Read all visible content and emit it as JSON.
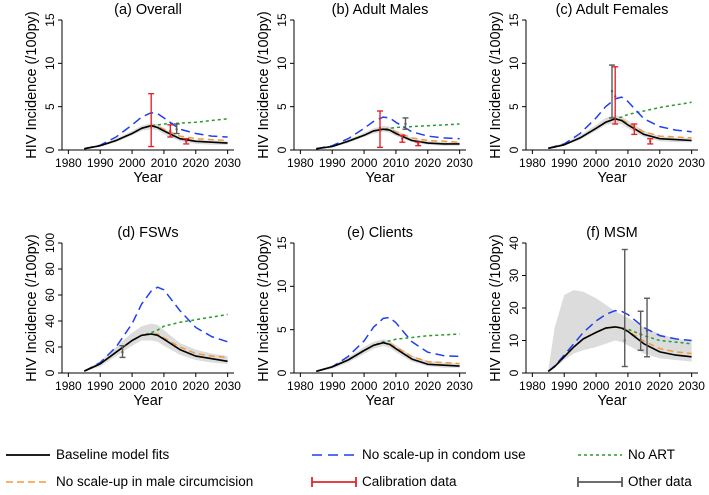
{
  "chart_data": [
    {
      "type": "line",
      "title": "(a) Overall",
      "xlabel": "Year",
      "ylabel": "HIV Incidence (/100py)",
      "xlim": [
        1978,
        2032
      ],
      "ylim": [
        0,
        15
      ],
      "xticks": [
        1980,
        1990,
        2000,
        2010,
        2020,
        2030
      ],
      "yticks": [
        0,
        5,
        10,
        15
      ],
      "x": [
        1985,
        1990,
        1995,
        2000,
        2003,
        2006,
        2008,
        2010,
        2015,
        2020,
        2025,
        2030
      ],
      "band": {
        "lower": [
          0.1,
          0.4,
          0.9,
          1.7,
          2.2,
          2.4,
          2.3,
          1.8,
          1.0,
          0.7,
          0.6,
          0.6
        ],
        "upper": [
          0.2,
          0.6,
          1.3,
          2.2,
          2.8,
          3.1,
          3.0,
          2.5,
          1.5,
          1.2,
          1.1,
          1.0
        ]
      },
      "series": [
        {
          "name": "Baseline model fits",
          "values": [
            0.15,
            0.5,
            1.1,
            1.9,
            2.5,
            2.8,
            2.6,
            2.2,
            1.3,
            1.0,
            0.9,
            0.8
          ]
        },
        {
          "name": "No scale-up in condom use",
          "values": [
            0.15,
            0.55,
            1.5,
            2.9,
            3.8,
            4.3,
            4.2,
            3.7,
            2.4,
            1.9,
            1.6,
            1.5
          ]
        },
        {
          "name": "No ART",
          "values": [
            0.15,
            0.5,
            1.1,
            1.9,
            2.5,
            2.8,
            2.9,
            3.0,
            3.1,
            3.2,
            3.4,
            3.6
          ]
        },
        {
          "name": "No scale-up in male circumcision",
          "values": [
            0.15,
            0.5,
            1.1,
            1.9,
            2.5,
            2.8,
            2.7,
            2.4,
            1.6,
            1.3,
            1.2,
            1.1
          ]
        }
      ],
      "calibration": [
        {
          "x": 2006,
          "y": 2.7,
          "lo": 0.4,
          "hi": 6.5
        },
        {
          "x": 2012,
          "y": 2.2,
          "lo": 1.5,
          "hi": 2.9
        },
        {
          "x": 2017,
          "y": 1.0,
          "lo": 0.7,
          "hi": 1.3
        }
      ],
      "other": [
        {
          "x": 2014,
          "y": 2.4,
          "lo": 1.9,
          "hi": 3.0
        }
      ]
    },
    {
      "type": "line",
      "title": "(b) Adult Males",
      "xlabel": "Year",
      "ylabel": "HIV Incidence (/100py)",
      "xlim": [
        1978,
        2032
      ],
      "ylim": [
        0,
        15
      ],
      "xticks": [
        1980,
        1990,
        2000,
        2010,
        2020,
        2030
      ],
      "yticks": [
        0,
        5,
        10,
        15
      ],
      "x": [
        1985,
        1990,
        1995,
        2000,
        2003,
        2006,
        2008,
        2010,
        2015,
        2020,
        2025,
        2030
      ],
      "band": {
        "lower": [
          0.1,
          0.3,
          0.8,
          1.5,
          1.9,
          2.1,
          2.0,
          1.6,
          0.9,
          0.6,
          0.5,
          0.5
        ],
        "upper": [
          0.2,
          0.5,
          1.2,
          2.0,
          2.5,
          2.8,
          2.7,
          2.3,
          1.4,
          1.0,
          0.9,
          0.9
        ]
      },
      "series": [
        {
          "name": "Baseline model fits",
          "values": [
            0.15,
            0.4,
            1.0,
            1.7,
            2.2,
            2.4,
            2.3,
            1.9,
            1.1,
            0.8,
            0.7,
            0.7
          ]
        },
        {
          "name": "No scale-up in condom use",
          "values": [
            0.15,
            0.5,
            1.3,
            2.5,
            3.3,
            3.8,
            3.7,
            3.2,
            2.1,
            1.6,
            1.4,
            1.3
          ]
        },
        {
          "name": "No ART",
          "values": [
            0.15,
            0.4,
            1.0,
            1.7,
            2.2,
            2.4,
            2.5,
            2.6,
            2.7,
            2.8,
            2.9,
            3.0
          ]
        },
        {
          "name": "No scale-up in male circumcision",
          "values": [
            0.15,
            0.4,
            1.0,
            1.7,
            2.2,
            2.4,
            2.4,
            2.1,
            1.4,
            1.1,
            1.0,
            0.9
          ]
        }
      ],
      "calibration": [
        {
          "x": 2005,
          "y": 2.5,
          "lo": 0.3,
          "hi": 4.5
        },
        {
          "x": 2012,
          "y": 1.3,
          "lo": 0.9,
          "hi": 1.7
        },
        {
          "x": 2017,
          "y": 0.7,
          "lo": 0.5,
          "hi": 0.9
        }
      ],
      "other": [
        {
          "x": 2013,
          "y": 3.0,
          "lo": 2.4,
          "hi": 3.7
        }
      ]
    },
    {
      "type": "line",
      "title": "(c) Adult Females",
      "xlabel": "Year",
      "ylabel": "HIV Incidence (/100py)",
      "xlim": [
        1978,
        2032
      ],
      "ylim": [
        0,
        15
      ],
      "xticks": [
        1980,
        1990,
        2000,
        2010,
        2020,
        2030
      ],
      "yticks": [
        0,
        5,
        10,
        15
      ],
      "x": [
        1985,
        1990,
        1995,
        2000,
        2003,
        2006,
        2008,
        2010,
        2015,
        2020,
        2025,
        2030
      ],
      "band": {
        "lower": [
          0.1,
          0.5,
          1.2,
          2.2,
          2.9,
          3.1,
          3.0,
          2.5,
          1.5,
          1.0,
          0.9,
          0.9
        ],
        "upper": [
          0.3,
          0.8,
          1.7,
          2.9,
          3.7,
          4.0,
          3.9,
          3.4,
          2.2,
          1.6,
          1.4,
          1.4
        ]
      },
      "series": [
        {
          "name": "Baseline model fits",
          "values": [
            0.2,
            0.6,
            1.4,
            2.5,
            3.2,
            3.6,
            3.4,
            2.9,
            1.8,
            1.3,
            1.2,
            1.1
          ]
        },
        {
          "name": "No scale-up in condom use",
          "values": [
            0.2,
            0.7,
            1.9,
            3.7,
            5.0,
            5.9,
            6.1,
            5.6,
            3.6,
            2.7,
            2.3,
            2.1
          ]
        },
        {
          "name": "No ART",
          "values": [
            0.2,
            0.6,
            1.4,
            2.5,
            3.2,
            3.6,
            3.8,
            4.1,
            4.5,
            4.9,
            5.2,
            5.5
          ]
        },
        {
          "name": "No scale-up in male circumcision",
          "values": [
            0.2,
            0.6,
            1.4,
            2.5,
            3.2,
            3.6,
            3.5,
            3.1,
            2.1,
            1.6,
            1.5,
            1.4
          ]
        }
      ],
      "calibration": [
        {
          "x": 2006,
          "y": 6.2,
          "lo": 3.0,
          "hi": 9.6
        },
        {
          "x": 2012,
          "y": 2.4,
          "lo": 1.8,
          "hi": 3.0
        },
        {
          "x": 2017,
          "y": 1.0,
          "lo": 0.7,
          "hi": 1.3
        }
      ],
      "other": [
        {
          "x": 2005,
          "y": 6.8,
          "lo": 3.7,
          "hi": 9.8
        }
      ]
    },
    {
      "type": "line",
      "title": "(d) FSWs",
      "xlabel": "Year",
      "ylabel": "HIV Incidence (/100py)",
      "xlim": [
        1978,
        2032
      ],
      "ylim": [
        0,
        100
      ],
      "xticks": [
        1980,
        1990,
        2000,
        2010,
        2020,
        2030
      ],
      "yticks": [
        0,
        20,
        40,
        60,
        80,
        100
      ],
      "x": [
        1985,
        1990,
        1995,
        2000,
        2003,
        2006,
        2008,
        2010,
        2015,
        2020,
        2025,
        2030
      ],
      "band": {
        "lower": [
          1,
          5,
          13,
          21,
          25,
          25,
          24,
          21,
          14,
          10,
          8,
          7
        ],
        "upper": [
          2,
          9,
          20,
          31,
          36,
          38,
          37,
          33,
          23,
          18,
          15,
          13
        ]
      },
      "series": [
        {
          "name": "Baseline model fits",
          "values": [
            1.5,
            7,
            16,
            25,
            29,
            30,
            29,
            26,
            18,
            13,
            11,
            9
          ]
        },
        {
          "name": "No scale-up in condom use",
          "values": [
            1.5,
            8,
            20,
            38,
            53,
            63,
            66,
            64,
            48,
            35,
            28,
            24
          ]
        },
        {
          "name": "No ART",
          "values": [
            1.5,
            7,
            16,
            25,
            29,
            31,
            33,
            36,
            39,
            41,
            43,
            45
          ]
        },
        {
          "name": "No scale-up in male circumcision",
          "values": [
            1.5,
            7,
            16,
            25,
            29,
            30,
            30,
            27,
            20,
            15,
            13,
            12
          ]
        }
      ],
      "calibration": [],
      "other": [
        {
          "x": 1997,
          "y": 16,
          "lo": 12,
          "hi": 21
        }
      ]
    },
    {
      "type": "line",
      "title": "(e) Clients",
      "xlabel": "Year",
      "ylabel": "HIV Incidence (/100py)",
      "xlim": [
        1978,
        2032
      ],
      "ylim": [
        0,
        15
      ],
      "xticks": [
        1980,
        1990,
        2000,
        2010,
        2020,
        2030
      ],
      "yticks": [
        0,
        5,
        10,
        15
      ],
      "x": [
        1985,
        1990,
        1995,
        2000,
        2003,
        2006,
        2008,
        2010,
        2015,
        2020,
        2025,
        2030
      ],
      "band": {
        "lower": [
          0.1,
          0.5,
          1.2,
          2.2,
          2.8,
          3.1,
          2.9,
          2.4,
          1.3,
          0.8,
          0.6,
          0.6
        ],
        "upper": [
          0.3,
          0.9,
          1.8,
          3.0,
          3.6,
          3.9,
          3.7,
          3.2,
          2.0,
          1.4,
          1.2,
          1.1
        ]
      },
      "series": [
        {
          "name": "Baseline model fits",
          "values": [
            0.2,
            0.7,
            1.5,
            2.6,
            3.2,
            3.5,
            3.3,
            2.8,
            1.6,
            1.0,
            0.9,
            0.8
          ]
        },
        {
          "name": "No scale-up in condom use",
          "values": [
            0.2,
            0.7,
            1.9,
            3.7,
            5.3,
            6.3,
            6.4,
            5.8,
            3.6,
            2.4,
            2.0,
            1.9
          ]
        },
        {
          "name": "No ART",
          "values": [
            0.2,
            0.7,
            1.5,
            2.6,
            3.2,
            3.6,
            3.7,
            3.9,
            4.1,
            4.3,
            4.4,
            4.5
          ]
        },
        {
          "name": "No scale-up in male circumcision",
          "values": [
            0.2,
            0.7,
            1.5,
            2.6,
            3.2,
            3.5,
            3.4,
            3.0,
            1.9,
            1.3,
            1.2,
            1.1
          ]
        }
      ],
      "calibration": [],
      "other": []
    },
    {
      "type": "line",
      "title": "(f) MSM",
      "xlabel": "Year",
      "ylabel": "HIV Incidence (/100py)",
      "xlim": [
        1978,
        2032
      ],
      "ylim": [
        0,
        40
      ],
      "xticks": [
        1980,
        1990,
        2000,
        2010,
        2020,
        2030
      ],
      "yticks": [
        0,
        10,
        20,
        30,
        40
      ],
      "x": [
        1985,
        1987,
        1990,
        1993,
        1996,
        2000,
        2003,
        2006,
        2008,
        2010,
        2015,
        2020,
        2025,
        2030
      ],
      "band": {
        "lower": [
          0.2,
          1.5,
          4,
          6,
          7,
          8,
          9,
          10,
          9.5,
          8.5,
          6,
          4.5,
          4,
          3.5
        ],
        "upper": [
          1,
          14,
          24,
          25.5,
          25,
          23,
          21,
          19,
          18,
          17,
          14,
          12,
          10.5,
          10
        ]
      },
      "series": [
        {
          "name": "Baseline model fits",
          "values": [
            0.5,
            2,
            5,
            8,
            10.5,
            12.5,
            13.8,
            14.2,
            13.8,
            12.8,
            9,
            6.5,
            5.5,
            5
          ]
        },
        {
          "name": "No scale-up in condom use",
          "values": [
            0.5,
            2.2,
            5.5,
            9,
            12.5,
            16,
            18,
            19.2,
            19,
            18,
            14,
            11.5,
            10.5,
            10
          ]
        },
        {
          "name": "No ART",
          "values": [
            0.5,
            2,
            5,
            8,
            10.5,
            12.5,
            13.8,
            14.2,
            14,
            13.5,
            11.5,
            10,
            9.5,
            9
          ]
        },
        {
          "name": "No scale-up in male circumcision",
          "values": [
            0.5,
            2,
            5,
            8,
            10.5,
            12.5,
            13.8,
            14.2,
            13.9,
            13,
            9.8,
            7.5,
            6.5,
            6
          ]
        }
      ],
      "calibration": [],
      "other": [
        {
          "x": 2009,
          "y": 10,
          "lo": 2,
          "hi": 38
        },
        {
          "x": 2014,
          "y": 12,
          "lo": 7,
          "hi": 19
        },
        {
          "x": 2016,
          "y": 13,
          "lo": 5,
          "hi": 23
        }
      ]
    }
  ],
  "legend": {
    "items": [
      {
        "label": "Baseline model fits",
        "style": "solid-black"
      },
      {
        "label": "No scale-up in condom use",
        "style": "longdash-blue"
      },
      {
        "label": "No ART",
        "style": "shortdash-green"
      },
      {
        "label": "No scale-up in male circumcision",
        "style": "dash-orange"
      },
      {
        "label": "Calibration data",
        "style": "errorbar-red"
      },
      {
        "label": "Other data",
        "style": "errorbar-gray"
      }
    ]
  },
  "colors": {
    "baseline": "#000000",
    "condom": "#1f3ff0",
    "art": "#2b9a2b",
    "circumcision": "#f39a3c",
    "calibration": "#e0262b",
    "other": "#5a5a5a",
    "band": "#d8d8d8"
  }
}
